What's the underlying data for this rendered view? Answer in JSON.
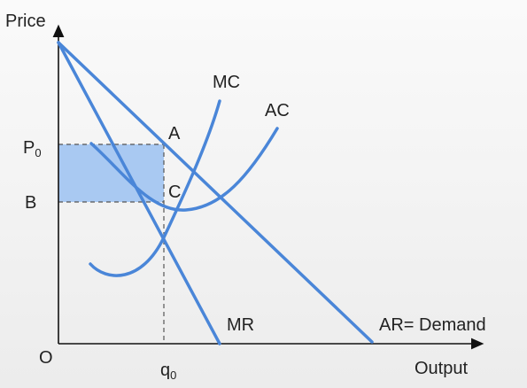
{
  "axes": {
    "y_label": "Price",
    "x_label": "Output",
    "origin": "O"
  },
  "price_labels": {
    "p0": {
      "main": "P",
      "sub": "0"
    },
    "b": "B"
  },
  "quantity_labels": {
    "q0": {
      "main": "q",
      "sub": "0"
    }
  },
  "points": {
    "a": "A",
    "c": "C"
  },
  "curves": {
    "mc": "MC",
    "ac": "AC",
    "mr": "MR",
    "ar": "AR= Demand"
  }
}
